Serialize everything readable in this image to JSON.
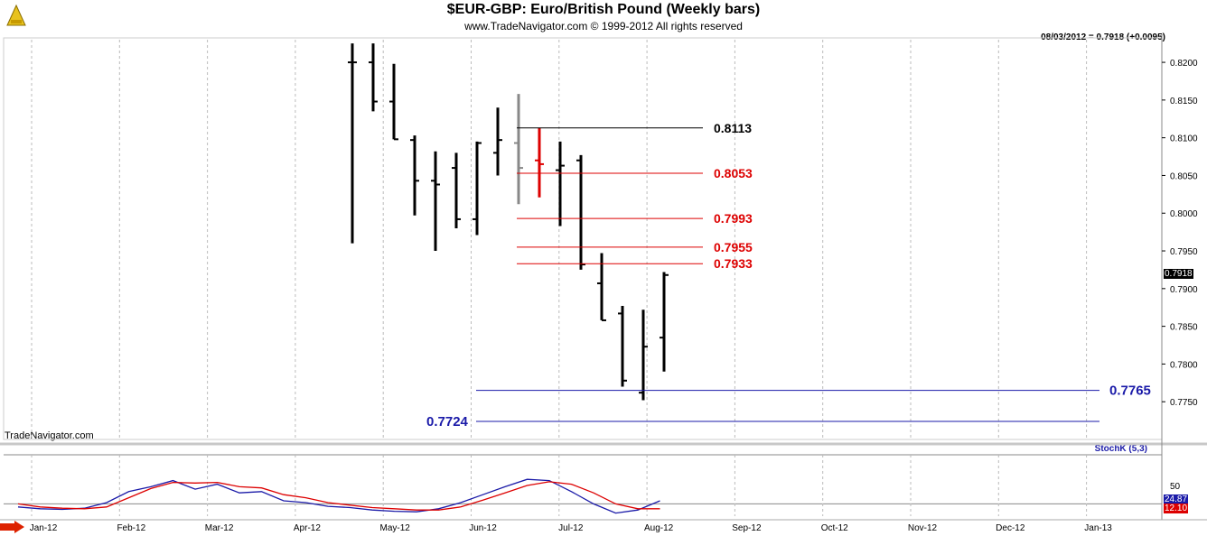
{
  "header": {
    "title": "$EUR-GBP:  Euro/British Pound  (Weekly bars)",
    "subtitle": "www.TradeNavigator.com © 1999-2012 All rights reserved",
    "readout": "08/03/2012 = 0.7918 (+0.0095)",
    "watermark": "TradeNavigator.com",
    "last_price_label": "0.7918",
    "stoch_label": "StochK (5,3)",
    "stoch_k_value": "24.87",
    "stoch_d_value": "12.10"
  },
  "colors": {
    "up": "#000000",
    "hist": "#888888",
    "red": "#dd0000",
    "blue": "#1a1aa8",
    "grid": "#bbbbbb"
  },
  "chart_data": [
    {
      "type": "ohlc",
      "title": "$EUR-GBP:  Euro/British Pound  (Weekly bars)",
      "ylim": [
        0.77,
        0.823
      ],
      "y_ticks": [
        "0.8200",
        "0.8150",
        "0.8100",
        "0.8050",
        "0.8000",
        "0.7950",
        "0.7900",
        "0.7850",
        "0.7800",
        "0.7750"
      ],
      "x_months": [
        "Jan-12",
        "Feb-12",
        "Mar-12",
        "Apr-12",
        "May-12",
        "Jun-12",
        "Jul-12",
        "Aug-12",
        "Sep-12",
        "Oct-12",
        "Nov-12",
        "Dec-12",
        "Jan-13"
      ],
      "bars": [
        {
          "h": 0.8225,
          "l": 0.796,
          "o": 0.82,
          "c": 0.82,
          "color": "up"
        },
        {
          "h": 0.8225,
          "l": 0.8135,
          "o": 0.82,
          "c": 0.8148,
          "color": "up"
        },
        {
          "h": 0.8198,
          "l": 0.8098,
          "o": 0.8148,
          "c": 0.8098,
          "color": "up"
        },
        {
          "h": 0.8103,
          "l": 0.7997,
          "o": 0.8097,
          "c": 0.8043,
          "color": "up"
        },
        {
          "h": 0.8082,
          "l": 0.795,
          "o": 0.8043,
          "c": 0.8038,
          "color": "up"
        },
        {
          "h": 0.808,
          "l": 0.798,
          "o": 0.806,
          "c": 0.7992,
          "color": "up"
        },
        {
          "h": 0.8095,
          "l": 0.7971,
          "o": 0.7992,
          "c": 0.8093,
          "color": "up"
        },
        {
          "h": 0.814,
          "l": 0.805,
          "o": 0.808,
          "c": 0.8097,
          "color": "up"
        },
        {
          "h": 0.8158,
          "l": 0.8012,
          "o": 0.8093,
          "c": 0.806,
          "color": "hist"
        },
        {
          "h": 0.8113,
          "l": 0.8021,
          "o": 0.807,
          "c": 0.8065,
          "color": "red"
        },
        {
          "h": 0.8095,
          "l": 0.7983,
          "o": 0.8057,
          "c": 0.8063,
          "color": "up"
        },
        {
          "h": 0.8077,
          "l": 0.7925,
          "o": 0.807,
          "c": 0.7932,
          "color": "up"
        },
        {
          "h": 0.7947,
          "l": 0.7858,
          "o": 0.7907,
          "c": 0.7858,
          "color": "up"
        },
        {
          "h": 0.7877,
          "l": 0.777,
          "o": 0.7867,
          "c": 0.7778,
          "color": "up"
        },
        {
          "h": 0.7872,
          "l": 0.7752,
          "o": 0.7762,
          "c": 0.7823,
          "color": "up"
        },
        {
          "h": 0.7922,
          "l": 0.779,
          "o": 0.7835,
          "c": 0.7918,
          "color": "up"
        }
      ],
      "levels": [
        {
          "value": 0.8113,
          "label": "0.8113",
          "color": "#000000"
        },
        {
          "value": 0.8053,
          "label": "0.8053",
          "color": "#dd0000"
        },
        {
          "value": 0.7993,
          "label": "0.7993",
          "color": "#dd0000"
        },
        {
          "value": 0.7955,
          "label": "0.7955",
          "color": "#dd0000"
        },
        {
          "value": 0.7933,
          "label": "0.7933",
          "color": "#dd0000"
        },
        {
          "value": 0.7765,
          "label": "0.7765",
          "color": "#1a1aa8"
        },
        {
          "value": 0.7724,
          "label": "0.7724",
          "color": "#1a1aa8"
        }
      ]
    },
    {
      "type": "line",
      "title": "StochK (5,3)",
      "ylim": [
        0,
        100
      ],
      "y_ticks": [
        "50"
      ],
      "series": [
        {
          "name": "StochK (5,3)",
          "color": "#1a1aa8",
          "values": [
            15,
            12,
            11,
            13,
            22,
            40,
            48,
            58,
            44,
            52,
            38,
            40,
            25,
            22,
            16,
            14,
            10,
            8,
            7,
            12,
            22,
            35,
            48,
            60,
            58,
            40,
            20,
            5,
            10,
            25
          ]
        },
        {
          "name": "",
          "color": "#dd0000",
          "values": [
            20,
            15,
            13,
            12,
            15,
            30,
            45,
            55,
            54,
            55,
            48,
            46,
            35,
            30,
            22,
            18,
            14,
            12,
            10,
            10,
            15,
            26,
            38,
            50,
            56,
            52,
            38,
            20,
            12,
            12
          ]
        }
      ]
    }
  ]
}
